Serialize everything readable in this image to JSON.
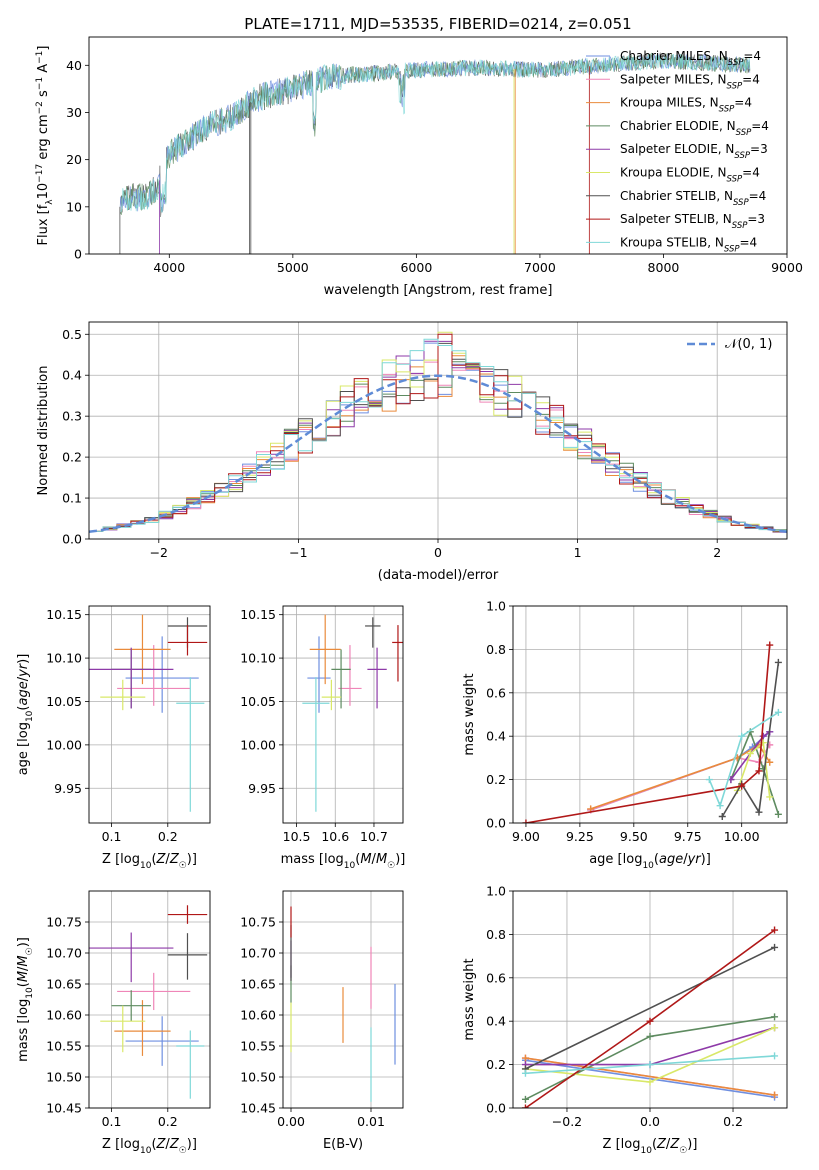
{
  "figure_title": "PLATE=1711, MJD=53535, FIBERID=0214, z=0.051",
  "colors": {
    "series": [
      "#6f8fe0",
      "#ef86b8",
      "#e98b3c",
      "#5e8b60",
      "#8e3aa8",
      "#d9e868",
      "#505050",
      "#b01818",
      "#7fd8d8"
    ],
    "gaussian": "#5f8bd6",
    "grid": "#b0b0b0"
  },
  "chart_data": [
    {
      "id": "spectrum",
      "type": "line",
      "xlabel": "wavelength [Angstrom, rest frame]",
      "ylabel": "Flux [f_λ 10^-17 erg cm^-2 s^-1 A^-1]",
      "xlim": [
        3350,
        9000
      ],
      "ylim": [
        0,
        46
      ],
      "xticks": [
        4000,
        5000,
        6000,
        7000,
        8000,
        9000
      ],
      "yticks": [
        0,
        10,
        20,
        30,
        40
      ],
      "grid": false,
      "legend_placement": "top-right",
      "data_range": [
        3600,
        8700
      ],
      "continuum_anchor_points": [
        {
          "x": 3600,
          "y": 10
        },
        {
          "x": 3650,
          "y": 12
        },
        {
          "x": 3800,
          "y": 12
        },
        {
          "x": 3900,
          "y": 14
        },
        {
          "x": 3950,
          "y": 18
        },
        {
          "x": 4000,
          "y": 21
        },
        {
          "x": 4100,
          "y": 23
        },
        {
          "x": 4200,
          "y": 25
        },
        {
          "x": 4300,
          "y": 27
        },
        {
          "x": 4500,
          "y": 29
        },
        {
          "x": 4700,
          "y": 33
        },
        {
          "x": 5000,
          "y": 35
        },
        {
          "x": 5200,
          "y": 37
        },
        {
          "x": 5500,
          "y": 38
        },
        {
          "x": 6000,
          "y": 39
        },
        {
          "x": 6500,
          "y": 39.5
        },
        {
          "x": 7000,
          "y": 39
        },
        {
          "x": 7500,
          "y": 40
        },
        {
          "x": 8000,
          "y": 41
        },
        {
          "x": 8700,
          "y": 40
        }
      ],
      "legend": [
        {
          "label": "Chabrier MILES, N",
          "sub": "SSP",
          "suffix": "=4"
        },
        {
          "label": "Salpeter MILES, N",
          "sub": "SSP",
          "suffix": "=4"
        },
        {
          "label": "Kroupa MILES, N",
          "sub": "SSP",
          "suffix": "=4"
        },
        {
          "label": "Chabrier ELODIE, N",
          "sub": "SSP",
          "suffix": "=4"
        },
        {
          "label": "Salpeter ELODIE, N",
          "sub": "SSP",
          "suffix": "=3"
        },
        {
          "label": "Kroupa ELODIE, N",
          "sub": "SSP",
          "suffix": "=4"
        },
        {
          "label": "Chabrier STELIB, N",
          "sub": "SSP",
          "suffix": "=4"
        },
        {
          "label": "Salpeter STELIB, N",
          "sub": "SSP",
          "suffix": "=3"
        },
        {
          "label": "Kroupa STELIB, N",
          "sub": "SSP",
          "suffix": "=4"
        }
      ]
    },
    {
      "id": "residuals",
      "type": "line",
      "xlabel": "(data-model)/error",
      "ylabel": "Normed distribution",
      "xlim": [
        -2.5,
        2.5
      ],
      "ylim": [
        0,
        0.53
      ],
      "xticks": [
        -2,
        -1,
        0,
        1,
        2
      ],
      "yticks": [
        0.0,
        0.1,
        0.2,
        0.3,
        0.4,
        0.5
      ],
      "grid": true,
      "legend_placement": "top-right",
      "legend": "𝒩(0, 1)",
      "bin_width": 0.1
    },
    {
      "id": "age-vs-Z",
      "type": "scatter",
      "xlabel": "Z [log10(Z/Z☉)]",
      "ylabel": "age  [log10(age/yr)]",
      "xlim": [
        0.06,
        0.275
      ],
      "ylim": [
        9.91,
        10.16
      ],
      "xticks": [
        0.1,
        0.2
      ],
      "yticks": [
        9.95,
        10.0,
        10.05,
        10.1,
        10.15
      ],
      "grid": true,
      "points": [
        {
          "x": 0.19,
          "xerr": 0.065,
          "y": 10.077,
          "yerr": [
            0.04,
            0.048
          ]
        },
        {
          "x": 0.175,
          "xerr": 0.065,
          "y": 10.065,
          "yerr": [
            0.02,
            0.05
          ]
        },
        {
          "x": 0.155,
          "xerr": 0.05,
          "y": 10.11,
          "yerr": [
            0.04,
            0.04
          ]
        },
        {
          "x": 0.135,
          "xerr": 0.035,
          "y": 10.087,
          "yerr": [
            0.045,
            0.023
          ]
        },
        {
          "x": 0.135,
          "xerr": 0.075,
          "y": 10.087,
          "yerr": [
            0.045,
            0.025
          ]
        },
        {
          "x": 0.12,
          "xerr": 0.04,
          "y": 10.055,
          "yerr": [
            0.015,
            0.02
          ]
        },
        {
          "x": 0.235,
          "xerr": 0.035,
          "y": 10.137,
          "yerr": [
            0.025,
            0.01
          ]
        },
        {
          "x": 0.235,
          "xerr": 0.035,
          "y": 10.118,
          "yerr": [
            0.015,
            0.02
          ]
        },
        {
          "x": 0.24,
          "xerr": 0.025,
          "y": 10.048,
          "yerr": [
            0.125,
            0.03
          ]
        }
      ]
    },
    {
      "id": "age-vs-mass",
      "type": "scatter",
      "xlabel": "mass [log10(M/M☉)]",
      "ylabel": "",
      "xlim": [
        10.465,
        10.775
      ],
      "ylim": [
        9.91,
        10.16
      ],
      "xticks": [
        10.5,
        10.6,
        10.7
      ],
      "yticks": [
        9.95,
        10.0,
        10.05,
        10.1,
        10.15
      ],
      "grid": true,
      "points": [
        {
          "x": 10.558,
          "xerr": 0.03,
          "y": 10.077,
          "yerr": [
            0.04,
            0.048
          ]
        },
        {
          "x": 10.638,
          "xerr": 0.03,
          "y": 10.065,
          "yerr": [
            0.02,
            0.05
          ]
        },
        {
          "x": 10.574,
          "xerr": 0.04,
          "y": 10.11,
          "yerr": [
            0.04,
            0.04
          ]
        },
        {
          "x": 10.615,
          "xerr": 0.025,
          "y": 10.087,
          "yerr": [
            0.045,
            0.023
          ]
        },
        {
          "x": 10.708,
          "xerr": 0.025,
          "y": 10.087,
          "yerr": [
            0.045,
            0.025
          ]
        },
        {
          "x": 10.59,
          "xerr": 0.025,
          "y": 10.055,
          "yerr": [
            0.015,
            0.02
          ]
        },
        {
          "x": 10.697,
          "xerr": 0.02,
          "y": 10.137,
          "yerr": [
            0.025,
            0.01
          ]
        },
        {
          "x": 10.762,
          "xerr": 0.015,
          "y": 10.118,
          "yerr": [
            0.045,
            0.02
          ]
        },
        {
          "x": 10.55,
          "xerr": 0.035,
          "y": 10.048,
          "yerr": [
            0.125,
            0.03
          ]
        }
      ]
    },
    {
      "id": "weight-vs-age",
      "type": "line",
      "xlabel": "age  [log10(age/yr)]",
      "ylabel": "mass weight",
      "xlim": [
        8.94,
        10.21
      ],
      "ylim": [
        0,
        1
      ],
      "xticks": [
        9.0,
        9.25,
        9.5,
        9.75,
        10.0
      ],
      "yticks": [
        0.0,
        0.2,
        0.4,
        0.6,
        0.8,
        1.0
      ],
      "grid": true,
      "series": [
        {
          "values": [
            [
              9.3,
              0.06
            ],
            [
              9.98,
              0.3
            ],
            [
              10.05,
              0.35
            ],
            [
              10.13,
              0.42
            ]
          ]
        },
        {
          "values": [
            [
              9.3,
              0.06
            ],
            [
              9.98,
              0.3
            ],
            [
              10.08,
              0.28
            ],
            [
              10.13,
              0.36
            ]
          ]
        },
        {
          "values": [
            [
              9.3,
              0.065
            ],
            [
              9.98,
              0.3
            ],
            [
              10.08,
              0.36
            ],
            [
              10.13,
              0.28
            ]
          ]
        },
        {
          "values": [
            [
              9.95,
              0.2
            ],
            [
              10.04,
              0.42
            ],
            [
              10.1,
              0.25
            ],
            [
              10.17,
              0.04
            ]
          ]
        },
        {
          "values": [
            [
              9.95,
              0.2
            ],
            [
              10.1,
              0.4
            ],
            [
              10.13,
              0.42
            ]
          ]
        },
        {
          "values": [
            [
              9.98,
              0.15
            ],
            [
              10.04,
              0.32
            ],
            [
              10.1,
              0.37
            ],
            [
              10.13,
              0.12
            ]
          ]
        },
        {
          "values": [
            [
              9.91,
              0.03
            ],
            [
              10.0,
              0.18
            ],
            [
              10.08,
              0.05
            ],
            [
              10.17,
              0.74
            ]
          ]
        },
        {
          "values": [
            [
              9.0,
              0.0
            ],
            [
              10.0,
              0.17
            ],
            [
              10.08,
              0.24
            ],
            [
              10.13,
              0.82
            ]
          ]
        },
        {
          "values": [
            [
              9.85,
              0.2
            ],
            [
              9.9,
              0.08
            ],
            [
              10.0,
              0.4
            ],
            [
              10.17,
              0.51
            ]
          ]
        }
      ]
    },
    {
      "id": "mass-vs-Z",
      "type": "scatter",
      "xlabel": "Z [log10(Z/Z☉)]",
      "ylabel": "mass [log10(M/M☉)]",
      "xlim": [
        0.06,
        0.275
      ],
      "ylim": [
        10.45,
        10.8
      ],
      "xticks": [
        0.1,
        0.2
      ],
      "yticks": [
        10.45,
        10.5,
        10.55,
        10.6,
        10.65,
        10.7,
        10.75
      ],
      "grid": true,
      "points": [
        {
          "x": 0.19,
          "xerr": 0.065,
          "y": 10.558,
          "yerr": [
            0.04,
            0.04
          ]
        },
        {
          "x": 0.175,
          "xerr": 0.065,
          "y": 10.638,
          "yerr": [
            0.03,
            0.03
          ]
        },
        {
          "x": 0.155,
          "xerr": 0.05,
          "y": 10.574,
          "yerr": [
            0.04,
            0.05
          ]
        },
        {
          "x": 0.135,
          "xerr": 0.035,
          "y": 10.615,
          "yerr": [
            0.025,
            0.025
          ]
        },
        {
          "x": 0.135,
          "xerr": 0.075,
          "y": 10.708,
          "yerr": [
            0.055,
            0.025
          ]
        },
        {
          "x": 0.12,
          "xerr": 0.04,
          "y": 10.59,
          "yerr": [
            0.05,
            0.025
          ]
        },
        {
          "x": 0.235,
          "xerr": 0.035,
          "y": 10.697,
          "yerr": [
            0.04,
            0.035
          ]
        },
        {
          "x": 0.235,
          "xerr": 0.035,
          "y": 10.762,
          "yerr": [
            0.015,
            0.015
          ]
        },
        {
          "x": 0.24,
          "xerr": 0.025,
          "y": 10.55,
          "yerr": [
            0.085,
            0.025
          ]
        }
      ]
    },
    {
      "id": "mass-vs-ebv",
      "type": "scatter",
      "xlabel": "E(B-V)",
      "ylabel": "",
      "xlim": [
        -0.001,
        0.014
      ],
      "ylim": [
        10.45,
        10.8
      ],
      "xticks": [
        0.0,
        0.01
      ],
      "yticks": [
        10.45,
        10.5,
        10.55,
        10.6,
        10.65,
        10.7,
        10.75
      ],
      "grid": true,
      "points": [
        {
          "x": 0.013,
          "y": 10.585,
          "yerr": [
            0.065,
            0.065
          ]
        },
        {
          "x": 0.01,
          "y": 10.66,
          "yerr": [
            0.05,
            0.05
          ]
        },
        {
          "x": 0.0065,
          "y": 10.6,
          "yerr": [
            0.045,
            0.045
          ]
        },
        {
          "x": 0.0,
          "y": 10.65,
          "yerr": [
            0.03,
            0.03
          ]
        },
        {
          "x": 0.0,
          "y": 10.69,
          "yerr": [
            0.03,
            0.03
          ]
        },
        {
          "x": 0.0,
          "y": 10.58,
          "yerr": [
            0.04,
            0.04
          ]
        },
        {
          "x": 0.0,
          "y": 10.7,
          "yerr": [
            0.045,
            0.045
          ]
        },
        {
          "x": 0.0,
          "y": 10.75,
          "yerr": [
            0.025,
            0.025
          ]
        },
        {
          "x": 0.01,
          "y": 10.52,
          "yerr": [
            0.06,
            0.06
          ]
        }
      ]
    },
    {
      "id": "weight-vs-Z",
      "type": "line",
      "xlabel": "Z [log10(Z/Z☉)]",
      "ylabel": "mass weight",
      "xlim": [
        -0.33,
        0.33
      ],
      "ylim": [
        0,
        1
      ],
      "xticks": [
        -0.2,
        0.0,
        0.2
      ],
      "yticks": [
        0.0,
        0.2,
        0.4,
        0.6,
        0.8,
        1.0
      ],
      "grid": true,
      "series": [
        {
          "values": [
            [
              -0.3,
              0.22
            ],
            [
              0.3,
              0.05
            ]
          ]
        },
        {
          "values": [
            [
              -0.3,
              0.23
            ],
            [
              0.3,
              0.06
            ]
          ]
        },
        {
          "values": [
            [
              -0.3,
              0.23
            ],
            [
              0.3,
              0.06
            ]
          ]
        },
        {
          "values": [
            [
              -0.3,
              0.04
            ],
            [
              0.0,
              0.33
            ],
            [
              0.3,
              0.42
            ]
          ]
        },
        {
          "values": [
            [
              -0.3,
              0.2
            ],
            [
              0.0,
              0.2
            ],
            [
              0.3,
              0.37
            ]
          ]
        },
        {
          "values": [
            [
              -0.3,
              0.18
            ],
            [
              0.0,
              0.12
            ],
            [
              0.3,
              0.37
            ]
          ]
        },
        {
          "values": [
            [
              -0.3,
              0.18
            ],
            [
              0.3,
              0.74
            ]
          ]
        },
        {
          "values": [
            [
              -0.3,
              0.0
            ],
            [
              0.0,
              0.4
            ],
            [
              0.3,
              0.82
            ]
          ]
        },
        {
          "values": [
            [
              -0.3,
              0.16
            ],
            [
              0.0,
              0.2
            ],
            [
              0.3,
              0.24
            ]
          ]
        }
      ]
    }
  ]
}
